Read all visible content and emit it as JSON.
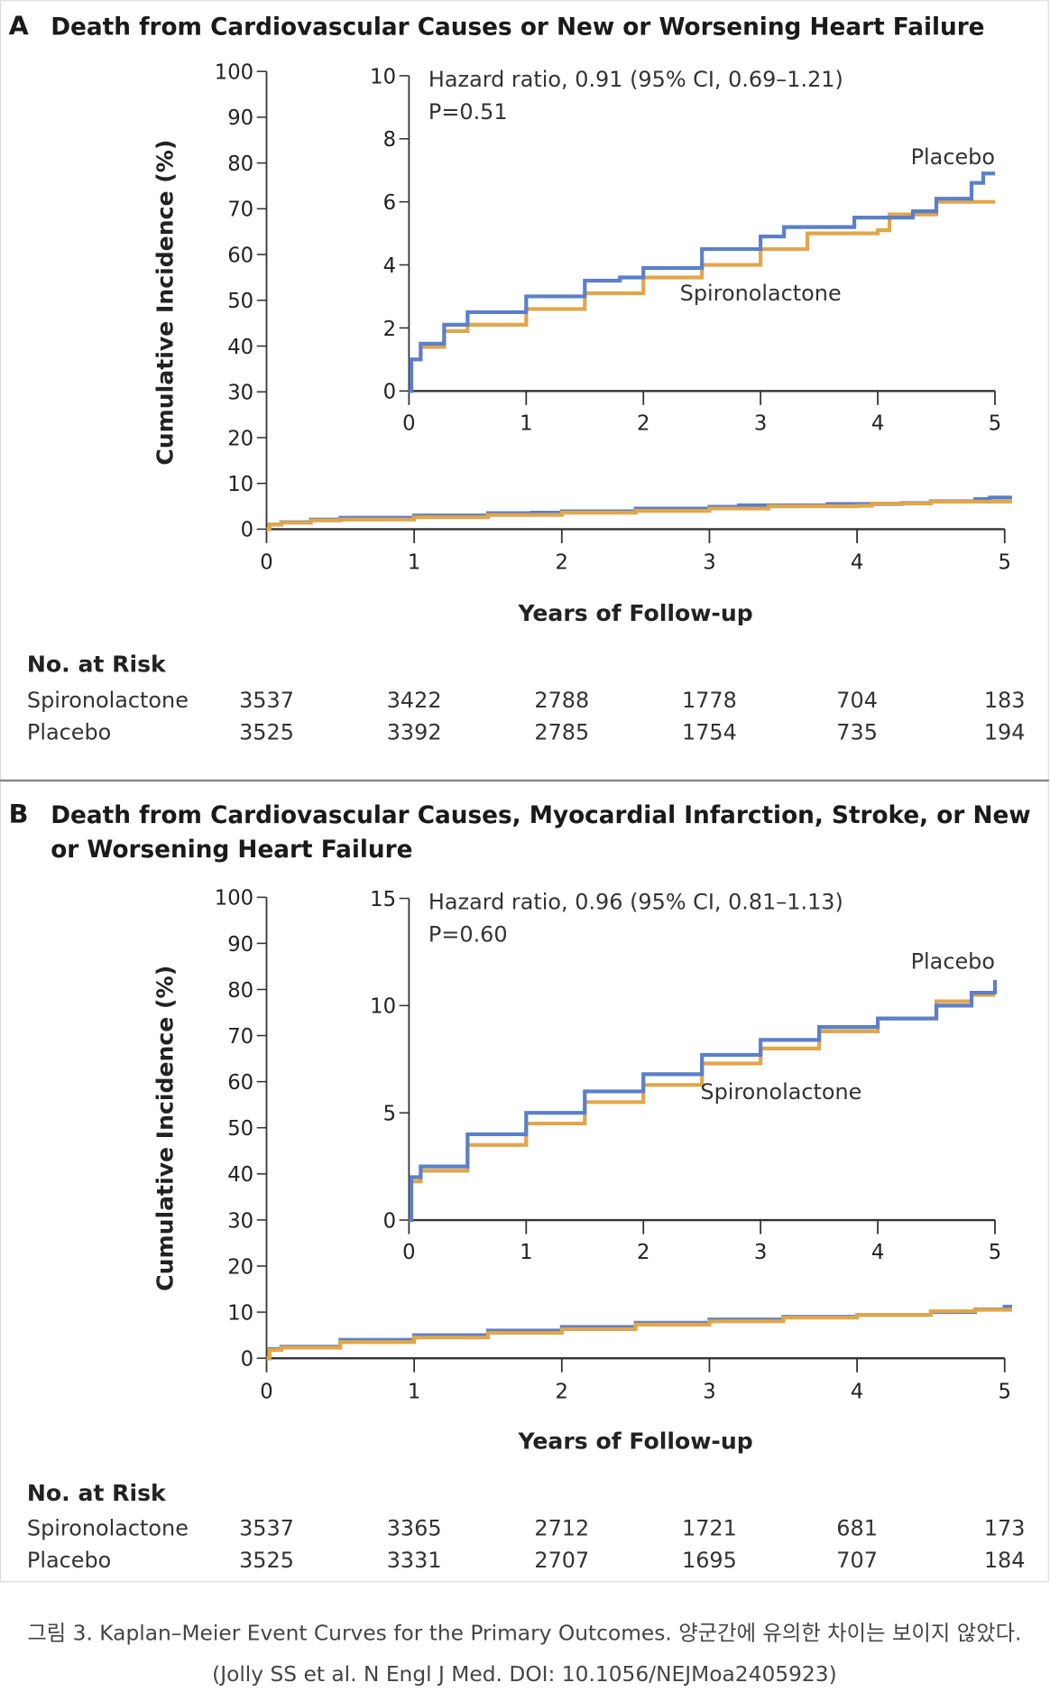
{
  "colors": {
    "placebo": "#5b7fc9",
    "spironolactone": "#e2a64a",
    "axis": "#333333"
  },
  "chart_data": [
    {
      "type": "line",
      "panel_letter": "A",
      "title_lines": [
        "Death from Cardiovascular Causes or New or Worsening Heart Failure"
      ],
      "xlabel": "Years of Follow-up",
      "ylabel": "Cumulative Incidence (%)",
      "xlim": [
        0,
        5
      ],
      "ylim": [
        0,
        100
      ],
      "x_ticks": [
        "0",
        "1",
        "2",
        "3",
        "4",
        "5"
      ],
      "y_ticks": [
        "0",
        "10",
        "20",
        "30",
        "40",
        "50",
        "60",
        "70",
        "80",
        "90",
        "100"
      ],
      "inset": {
        "xlim": [
          0,
          5
        ],
        "ylim": [
          0,
          10
        ],
        "x_ticks": [
          "0",
          "1",
          "2",
          "3",
          "4",
          "5"
        ],
        "y_ticks": [
          "0",
          "2",
          "4",
          "6",
          "8",
          "10"
        ],
        "hazard_text": "Hazard ratio, 0.91 (95% CI, 0.69–1.21)",
        "p_text": "P=0.51",
        "label_placebo": "Placebo",
        "label_spironolactone": "Spironolactone"
      },
      "series": [
        {
          "name": "Placebo",
          "color": "#5b7fc9",
          "x": [
            0,
            0.02,
            0.1,
            0.3,
            0.5,
            1,
            1.5,
            1.8,
            2,
            2.5,
            3,
            3.2,
            3.75,
            3.8,
            4.3,
            4.5,
            4.8,
            4.9,
            5
          ],
          "y": [
            0,
            1,
            1.5,
            2.1,
            2.5,
            3,
            3.5,
            3.6,
            3.9,
            4.5,
            4.9,
            5.2,
            5.2,
            5.5,
            5.7,
            6.1,
            6.6,
            6.9,
            6.9
          ]
        },
        {
          "name": "Spironolactone",
          "color": "#e2a64a",
          "x": [
            0,
            0.02,
            0.1,
            0.3,
            0.5,
            1,
            1.5,
            2,
            2.5,
            3,
            3.4,
            4,
            4.1,
            4.5,
            5
          ],
          "y": [
            0,
            1,
            1.4,
            1.9,
            2.1,
            2.6,
            3.1,
            3.6,
            4,
            4.5,
            5,
            5.1,
            5.6,
            6,
            6
          ]
        }
      ],
      "risk_table": {
        "header": "No. at Risk",
        "rows": [
          {
            "label": "Spironolactone",
            "values": [
              "3537",
              "3422",
              "2788",
              "1778",
              "704",
              "183"
            ]
          },
          {
            "label": "Placebo",
            "values": [
              "3525",
              "3392",
              "2785",
              "1754",
              "735",
              "194"
            ]
          }
        ]
      }
    },
    {
      "type": "line",
      "panel_letter": "B",
      "title_lines": [
        "Death from Cardiovascular Causes, Myocardial Infarction, Stroke, or New",
        "or Worsening Heart Failure"
      ],
      "xlabel": "Years of Follow-up",
      "ylabel": "Cumulative Incidence (%)",
      "xlim": [
        0,
        5
      ],
      "ylim": [
        0,
        100
      ],
      "x_ticks": [
        "0",
        "1",
        "2",
        "3",
        "4",
        "5"
      ],
      "y_ticks": [
        "0",
        "10",
        "20",
        "30",
        "40",
        "50",
        "60",
        "70",
        "80",
        "90",
        "100"
      ],
      "inset": {
        "xlim": [
          0,
          5
        ],
        "ylim": [
          0,
          15
        ],
        "x_ticks": [
          "0",
          "1",
          "2",
          "3",
          "4",
          "5"
        ],
        "y_ticks": [
          "0",
          "5",
          "10",
          "15"
        ],
        "hazard_text": "Hazard ratio, 0.96 (95% CI, 0.81–1.13)",
        "p_text": "P=0.60",
        "label_placebo": "Placebo",
        "label_spironolactone": "Spironolactone"
      },
      "series": [
        {
          "name": "Placebo",
          "color": "#5b7fc9",
          "x": [
            0,
            0.02,
            0.1,
            0.5,
            1,
            1.5,
            2,
            2.5,
            3,
            3.5,
            4,
            4.5,
            4.8,
            5
          ],
          "y": [
            0,
            2,
            2.5,
            4,
            5,
            6,
            6.8,
            7.7,
            8.4,
            9,
            9.4,
            10,
            10.6,
            11.2
          ]
        },
        {
          "name": "Spironolactone",
          "color": "#e2a64a",
          "x": [
            0,
            0.02,
            0.1,
            0.5,
            1,
            1.5,
            2,
            2.5,
            3,
            3.5,
            4,
            4.5,
            4.8,
            5
          ],
          "y": [
            0,
            1.8,
            2.3,
            3.5,
            4.5,
            5.5,
            6.3,
            7.3,
            8,
            8.8,
            9.4,
            10.2,
            10.5,
            10.5
          ]
        }
      ],
      "risk_table": {
        "header": "No. at Risk",
        "rows": [
          {
            "label": "Spironolactone",
            "values": [
              "3537",
              "3365",
              "2712",
              "1721",
              "681",
              "173"
            ]
          },
          {
            "label": "Placebo",
            "values": [
              "3525",
              "3331",
              "2707",
              "1695",
              "707",
              "184"
            ]
          }
        ]
      }
    }
  ],
  "caption": {
    "line1": "그림 3. Kaplan–Meier Event Curves for the Primary Outcomes. 양군간에 유의한 차이는 보이지 않았다.",
    "line2": "(Jolly SS et al. N Engl J Med. DOI: 10.1056/NEJMoa2405923)"
  }
}
